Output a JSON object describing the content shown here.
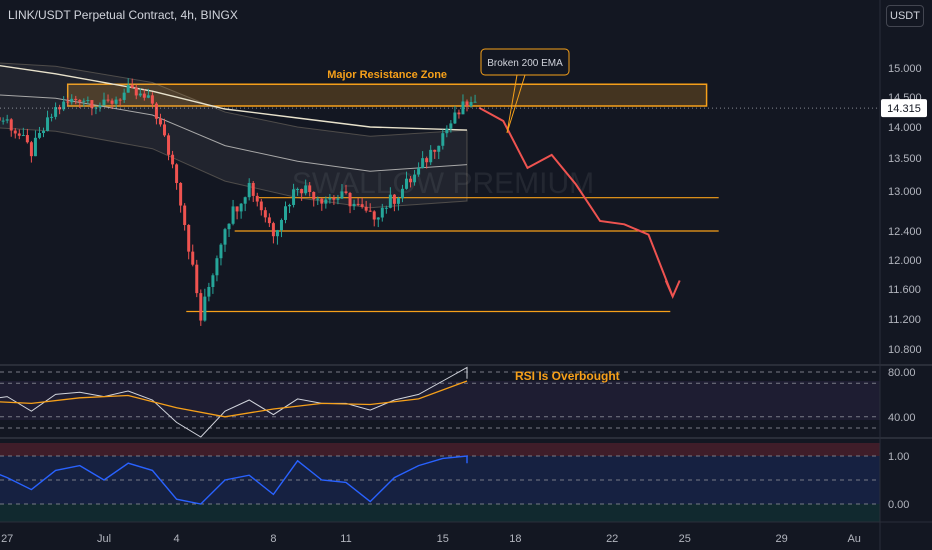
{
  "header": {
    "title": "LINK/USDT Perpetual Contract, 4h, BINGX",
    "currency": "USDT"
  },
  "watermark": "SWALLOW PREMIUM",
  "colors": {
    "background": "#131722",
    "bull": "#26a69a",
    "bear": "#ef5350",
    "annotation": "#f6a01a",
    "projection": "#ef5350",
    "ema": "#e8e2cc",
    "rsi": "#d1d4dc",
    "rsi_ma": "#f6a01a",
    "oscillator": "#2962ff"
  },
  "chart_data": [
    {
      "type": "candlestick",
      "pane": "price",
      "price_axis_ticks": [
        "15.000",
        "14.500",
        "14.000",
        "13.500",
        "13.000",
        "12.400",
        "12.000",
        "11.600",
        "11.200",
        "10.800"
      ],
      "time_axis_ticks": [
        "27",
        "Jul",
        "4",
        "8",
        "11",
        "15",
        "18",
        "22",
        "25",
        "29",
        "Au"
      ],
      "ylim": [
        10.8,
        15.0
      ],
      "current_price": "14.315",
      "close_path": [
        [
          "Jun 26",
          14.2
        ],
        [
          "Jun 27",
          14.1
        ],
        [
          "Jun 28",
          13.6
        ],
        [
          "Jun 29",
          14.3
        ],
        [
          "Jun 30",
          14.5
        ],
        [
          "Jul 1",
          14.35
        ],
        [
          "Jul 2",
          14.6
        ],
        [
          "Jul 3",
          14.4
        ],
        [
          "Jul 4",
          13.2
        ],
        [
          "Jul 5",
          11.2
        ],
        [
          "Jul 6",
          12.5
        ],
        [
          "Jul 7",
          13.1
        ],
        [
          "Jul 8",
          12.4
        ],
        [
          "Jul 9",
          13.1
        ],
        [
          "Jul 10",
          12.9
        ],
        [
          "Jul 11",
          12.9
        ],
        [
          "Jul 12",
          12.6
        ],
        [
          "Jul 13",
          12.9
        ],
        [
          "Jul 14",
          13.3
        ],
        [
          "Jul 15",
          13.9
        ],
        [
          "Jul 16",
          14.4
        ],
        [
          "Jul 16",
          14.3
        ]
      ],
      "ema_200": [
        [
          "Jun 26",
          15.08
        ],
        [
          "Jun 29",
          14.9
        ],
        [
          "Jul 3",
          14.6
        ],
        [
          "Jul 6",
          14.3
        ],
        [
          "Jul 9",
          14.15
        ],
        [
          "Jul 12",
          14.0
        ],
        [
          "Jul 16",
          13.95
        ]
      ],
      "ma": [
        [
          "Jun 26",
          14.55
        ],
        [
          "Jun 29",
          14.48
        ],
        [
          "Jul 3",
          14.2
        ],
        [
          "Jul 6",
          13.7
        ],
        [
          "Jul 9",
          13.45
        ],
        [
          "Jul 12",
          13.3
        ],
        [
          "Jul 16",
          13.4
        ]
      ],
      "price_levels": [
        12.9,
        12.4,
        11.3
      ],
      "resistance_zone": [
        14.35,
        14.72
      ],
      "annotations": {
        "resistance_label": "Major Resistance Zone",
        "ema_callout": "Broken 200 EMA"
      },
      "projection": [
        [
          "Jul 16",
          14.32
        ],
        [
          "Jul 17",
          14.1
        ],
        [
          "Jul 18",
          13.35
        ],
        [
          "Jul 19",
          13.55
        ],
        [
          "Jul 20",
          13.1
        ],
        [
          "Jul 21",
          12.55
        ],
        [
          "Jul 22",
          12.5
        ],
        [
          "Jul 23",
          12.35
        ],
        [
          "Jul 24",
          11.5
        ]
      ]
    },
    {
      "type": "line",
      "pane": "rsi",
      "axis_ticks": [
        "80.00",
        "40.00"
      ],
      "ylim": [
        20,
        90
      ],
      "annotation": "RSI Is Overbought",
      "series": [
        {
          "values": [
            [
              "Jun 26",
              55
            ],
            [
              "Jun 27",
              58
            ],
            [
              "Jun 28",
              45
            ],
            [
              "Jun 29",
              60
            ],
            [
              "Jun 30",
              62
            ],
            [
              "Jul 1",
              58
            ],
            [
              "Jul 2",
              63
            ],
            [
              "Jul 3",
              55
            ],
            [
              "Jul 4",
              35
            ],
            [
              "Jul 5",
              22
            ],
            [
              "Jul 6",
              45
            ],
            [
              "Jul 7",
              55
            ],
            [
              "Jul 8",
              42
            ],
            [
              "Jul 9",
              56
            ],
            [
              "Jul 10",
              52
            ],
            [
              "Jul 11",
              52
            ],
            [
              "Jul 12",
              46
            ],
            [
              "Jul 13",
              55
            ],
            [
              "Jul 14",
              60
            ],
            [
              "Jul 15",
              72
            ],
            [
              "Jul 16",
              84
            ],
            [
              "Jul 16",
              74
            ]
          ]
        },
        {
          "values": [
            [
              "Jun 26",
              54
            ],
            [
              "Jun 28",
              52
            ],
            [
              "Jun 30",
              57
            ],
            [
              "Jul 2",
              59
            ],
            [
              "Jul 4",
              48
            ],
            [
              "Jul 6",
              40
            ],
            [
              "Jul 8",
              47
            ],
            [
              "Jul 10",
              52
            ],
            [
              "Jul 12",
              51
            ],
            [
              "Jul 14",
              56
            ],
            [
              "Jul 16",
              72
            ]
          ]
        }
      ]
    },
    {
      "type": "line",
      "pane": "oscillator",
      "axis_ticks": [
        "1.00",
        "0.00"
      ],
      "ylim": [
        -0.2,
        1.2
      ],
      "series": [
        {
          "values": [
            [
              "Jun 26",
              0.75
            ],
            [
              "Jun 27",
              0.55
            ],
            [
              "Jun 28",
              0.3
            ],
            [
              "Jun 29",
              0.7
            ],
            [
              "Jun 30",
              0.8
            ],
            [
              "Jul 1",
              0.5
            ],
            [
              "Jul 2",
              0.85
            ],
            [
              "Jul 3",
              0.7
            ],
            [
              "Jul 4",
              0.1
            ],
            [
              "Jul 5",
              0.0
            ],
            [
              "Jul 6",
              0.5
            ],
            [
              "Jul 7",
              0.6
            ],
            [
              "Jul 8",
              0.2
            ],
            [
              "Jul 9",
              0.9
            ],
            [
              "Jul 10",
              0.5
            ],
            [
              "Jul 11",
              0.45
            ],
            [
              "Jul 12",
              0.05
            ],
            [
              "Jul 13",
              0.55
            ],
            [
              "Jul 14",
              0.8
            ],
            [
              "Jul 15",
              0.95
            ],
            [
              "Jul 16",
              1.0
            ],
            [
              "Jul 16",
              0.85
            ]
          ]
        }
      ]
    }
  ]
}
